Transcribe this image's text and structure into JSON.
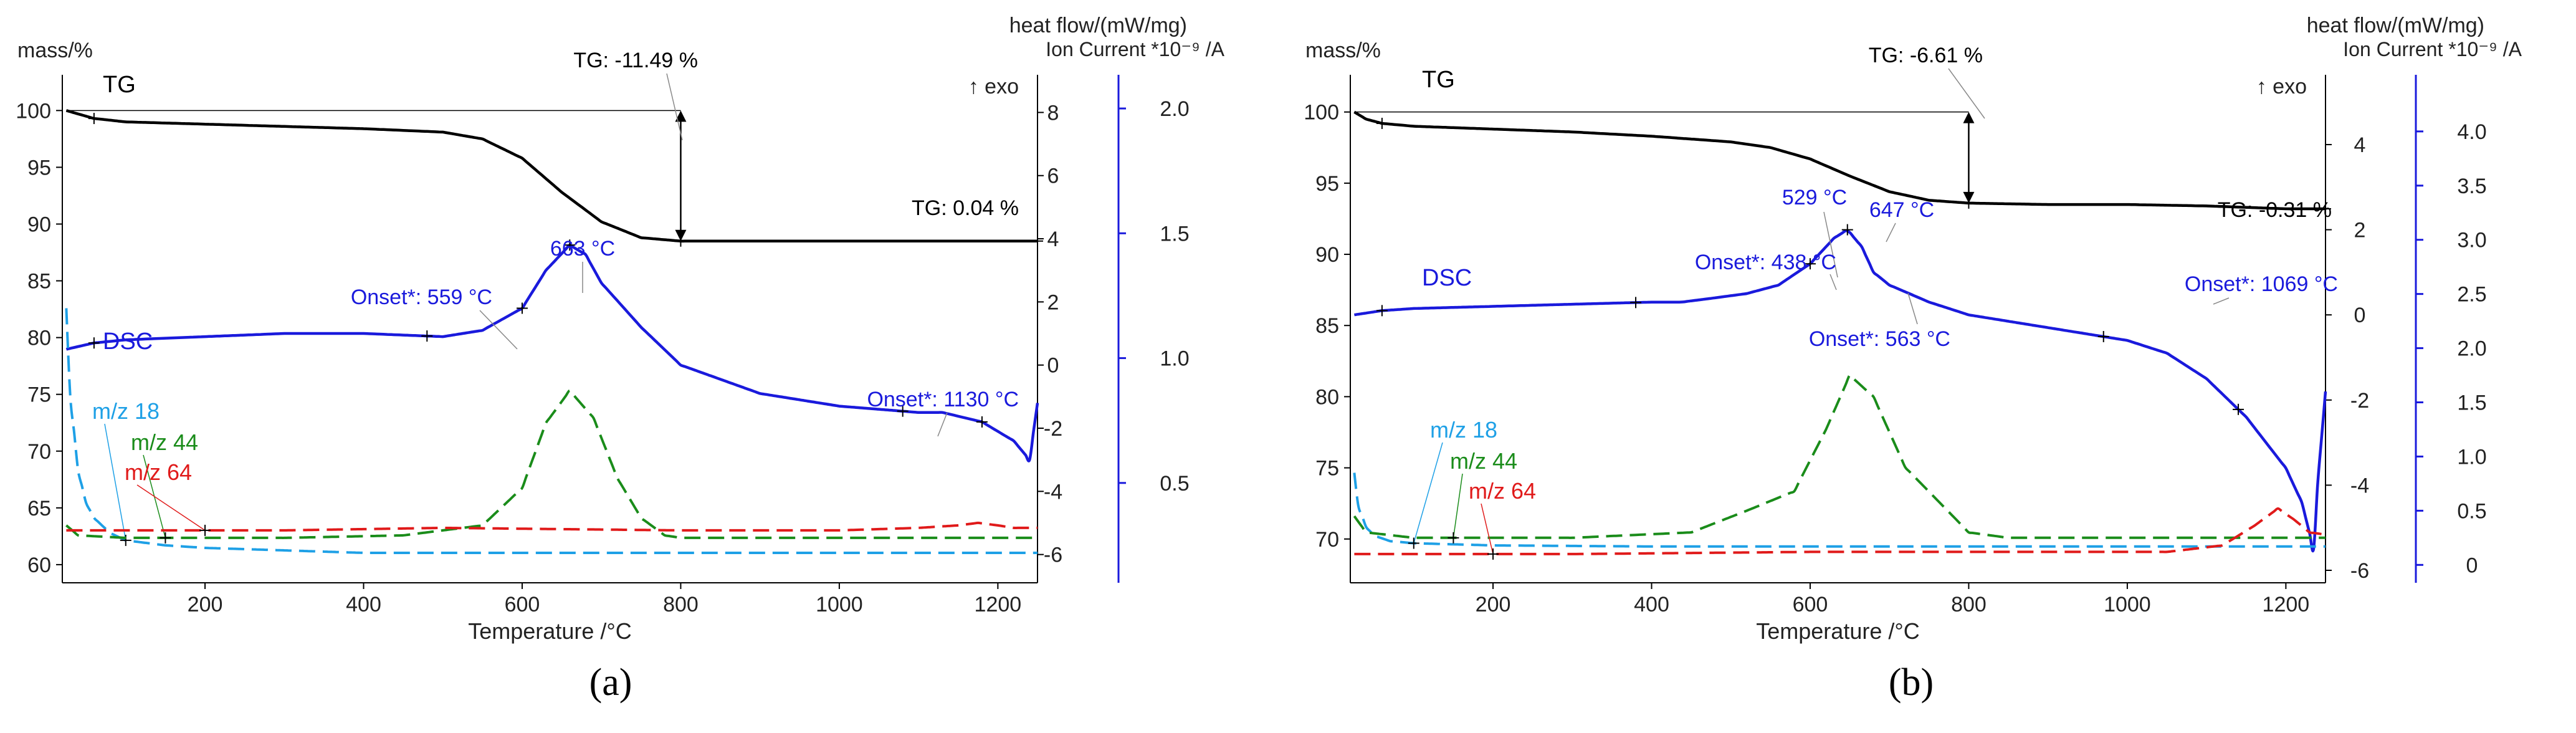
{
  "figure": {
    "label_a": "(a)",
    "label_b": "(b)"
  },
  "colors": {
    "tg": "#000000",
    "dsc": "#1a1adc",
    "ms18": "#1ea0e6",
    "ms44": "#1a8c1a",
    "ms64": "#e01a1a",
    "axis_right": "#1a1adc"
  },
  "chart_data": [
    {
      "id": "a",
      "type": "line",
      "subfigure": "(a)",
      "xlabel": "Temperature /°C",
      "xlim": [
        20,
        1250
      ],
      "xticks": [
        200,
        400,
        600,
        800,
        1000,
        1200
      ],
      "y_left": {
        "label": "mass/%",
        "lim": [
          59.5,
          101.5
        ],
        "ticks": [
          60,
          65,
          70,
          75,
          80,
          85,
          90,
          95,
          100
        ]
      },
      "y_right1": {
        "label1": "heat flow/(mW/mg)",
        "label2": "Ion Current *10⁻⁹ /A",
        "lim": [
          -6.5,
          8.6
        ],
        "ticks": [
          -6,
          -4,
          -2,
          0,
          2,
          4,
          6,
          8
        ]
      },
      "y_right2": {
        "lim": [
          0.15,
          2.06
        ],
        "ticks": [
          0.5,
          1.0,
          1.5,
          2.0
        ],
        "tick_labels": [
          "0.5",
          "1.0",
          "1.5",
          "2.0"
        ]
      },
      "exo_label": "↑ exo",
      "series": [
        {
          "name": "TG",
          "label": "TG",
          "axis": "left",
          "style": "solid",
          "x": [
            25,
            60,
            100,
            200,
            300,
            400,
            500,
            550,
            600,
            650,
            700,
            750,
            800,
            850,
            1000,
            1100,
            1200,
            1250
          ],
          "y": [
            100,
            99.3,
            99.0,
            98.8,
            98.6,
            98.4,
            98.1,
            97.5,
            95.8,
            92.8,
            90.2,
            88.8,
            88.5,
            88.5,
            88.5,
            88.5,
            88.5,
            88.5
          ]
        },
        {
          "name": "DSC",
          "label": "DSC",
          "axis": "right1",
          "style": "solid",
          "x": [
            25,
            60,
            100,
            200,
            300,
            400,
            500,
            550,
            600,
            630,
            660,
            680,
            700,
            750,
            800,
            900,
            1000,
            1100,
            1130,
            1180,
            1220,
            1240,
            1250
          ],
          "y": [
            0.5,
            0.7,
            0.8,
            0.9,
            1.0,
            1.0,
            0.9,
            1.1,
            1.8,
            3.0,
            3.8,
            3.5,
            2.6,
            1.2,
            0.0,
            -0.9,
            -1.3,
            -1.5,
            -1.5,
            -1.8,
            -2.4,
            -3.0,
            -1.2
          ]
        },
        {
          "name": "m/z 18",
          "label": "m/z 18",
          "axis": "right2",
          "style": "dash",
          "x": [
            25,
            30,
            40,
            50,
            60,
            80,
            100,
            150,
            200,
            300,
            400,
            500,
            700,
            1000,
            1250
          ],
          "y": [
            1.2,
            0.85,
            0.55,
            0.42,
            0.36,
            0.3,
            0.27,
            0.25,
            0.24,
            0.23,
            0.22,
            0.22,
            0.22,
            0.22,
            0.22
          ]
        },
        {
          "name": "m/z 44",
          "label": "m/z 44",
          "axis": "right2",
          "style": "dash",
          "x": [
            25,
            40,
            100,
            300,
            450,
            550,
            600,
            630,
            660,
            690,
            720,
            750,
            780,
            800,
            1000,
            1250
          ],
          "y": [
            0.33,
            0.29,
            0.28,
            0.28,
            0.29,
            0.33,
            0.48,
            0.74,
            0.87,
            0.76,
            0.52,
            0.36,
            0.29,
            0.28,
            0.28,
            0.28
          ]
        },
        {
          "name": "m/z 64",
          "label": "m/z 64",
          "axis": "right2",
          "style": "dash",
          "x": [
            25,
            100,
            300,
            500,
            800,
            1000,
            1100,
            1150,
            1175,
            1200,
            1220,
            1250
          ],
          "y": [
            0.31,
            0.31,
            0.31,
            0.32,
            0.31,
            0.31,
            0.32,
            0.33,
            0.34,
            0.33,
            0.32,
            0.32
          ]
        }
      ],
      "annotations": [
        {
          "text": "TG: -11.49 %",
          "color": "tg"
        },
        {
          "text": "TG: 0.04 %",
          "color": "tg"
        },
        {
          "text": "663 °C",
          "color": "dsc"
        },
        {
          "text": "Onset*: 559 °C",
          "color": "dsc"
        },
        {
          "text": "Onset*: 1130 °C",
          "color": "dsc"
        }
      ]
    },
    {
      "id": "b",
      "type": "line",
      "subfigure": "(b)",
      "xlabel": "Temperature /°C",
      "xlim": [
        20,
        1250
      ],
      "xticks": [
        200,
        400,
        600,
        800,
        1000,
        1200
      ],
      "y_left": {
        "label": "mass/%",
        "lim": [
          67.8,
          101.3
        ],
        "ticks": [
          70,
          75,
          80,
          85,
          90,
          95,
          100
        ]
      },
      "y_right1": {
        "label1": "heat flow/(mW/mg)",
        "label2": "Ion Current *10⁻⁹ /A",
        "lim": [
          -6,
          5.2
        ],
        "ticks": [
          -6,
          -4,
          -2,
          0,
          2,
          4
        ]
      },
      "y_right2": {
        "lim": [
          -0.05,
          4.35
        ],
        "ticks": [
          0.0,
          0.5,
          1.0,
          1.5,
          2.0,
          2.5,
          3.0,
          3.5,
          4.0
        ],
        "tick_labels": [
          "0",
          "0.5",
          "1.0",
          "1.5",
          "2.0",
          "2.5",
          "3.0",
          "3.5",
          "4.0"
        ]
      },
      "exo_label": "↑ exo",
      "series": [
        {
          "name": "TG",
          "label": "TG",
          "axis": "left",
          "style": "solid",
          "x": [
            25,
            40,
            60,
            100,
            200,
            300,
            400,
            500,
            550,
            600,
            650,
            700,
            750,
            800,
            900,
            1000,
            1100,
            1200,
            1250
          ],
          "y": [
            100,
            99.5,
            99.2,
            99.0,
            98.8,
            98.6,
            98.3,
            97.9,
            97.5,
            96.7,
            95.5,
            94.4,
            93.8,
            93.6,
            93.5,
            93.5,
            93.4,
            93.2,
            93.2
          ]
        },
        {
          "name": "DSC",
          "label": "DSC",
          "axis": "right1",
          "style": "solid",
          "x": [
            25,
            60,
            100,
            200,
            300,
            400,
            438,
            480,
            520,
            560,
            600,
            630,
            647,
            665,
            680,
            700,
            750,
            800,
            900,
            1000,
            1050,
            1100,
            1150,
            1200,
            1220,
            1235,
            1240,
            1250
          ],
          "y": [
            0.0,
            0.1,
            0.15,
            0.2,
            0.25,
            0.3,
            0.3,
            0.4,
            0.5,
            0.7,
            1.2,
            1.8,
            2.0,
            1.6,
            1.0,
            0.7,
            0.3,
            0.0,
            -0.3,
            -0.6,
            -0.9,
            -1.5,
            -2.4,
            -3.6,
            -4.4,
            -5.5,
            -4.0,
            -1.8
          ]
        },
        {
          "name": "m/z 18",
          "label": "m/z 18",
          "axis": "right2",
          "style": "dash",
          "x": [
            25,
            30,
            40,
            50,
            70,
            100,
            200,
            400,
            700,
            1000,
            1250
          ],
          "y": [
            0.85,
            0.55,
            0.35,
            0.27,
            0.22,
            0.2,
            0.18,
            0.17,
            0.17,
            0.17,
            0.17
          ]
        },
        {
          "name": "m/z 44",
          "label": "m/z 44",
          "axis": "right2",
          "style": "dash",
          "x": [
            25,
            40,
            100,
            300,
            450,
            520,
            580,
            620,
            650,
            680,
            720,
            760,
            800,
            850,
            1000,
            1250
          ],
          "y": [
            0.45,
            0.3,
            0.25,
            0.25,
            0.3,
            0.5,
            0.68,
            1.25,
            1.75,
            1.55,
            0.9,
            0.6,
            0.3,
            0.25,
            0.25,
            0.25
          ]
        },
        {
          "name": "m/z 64",
          "label": "m/z 64",
          "axis": "right2",
          "style": "dash",
          "x": [
            25,
            100,
            300,
            600,
            900,
            1050,
            1120,
            1160,
            1190,
            1210,
            1230,
            1250
          ],
          "y": [
            0.1,
            0.1,
            0.1,
            0.12,
            0.12,
            0.12,
            0.18,
            0.36,
            0.52,
            0.42,
            0.3,
            0.28
          ]
        }
      ],
      "annotations": [
        {
          "text": "TG: -6.61 %",
          "color": "tg"
        },
        {
          "text": "TG: -0.31 %",
          "color": "tg"
        },
        {
          "text": "529 °C",
          "color": "dsc"
        },
        {
          "text": "647 °C",
          "color": "dsc"
        },
        {
          "text": "Onset*: 438 °C",
          "color": "dsc"
        },
        {
          "text": "Onset*: 563 °C",
          "color": "dsc"
        },
        {
          "text": "Onset*: 1069 °C",
          "color": "dsc"
        }
      ]
    }
  ]
}
